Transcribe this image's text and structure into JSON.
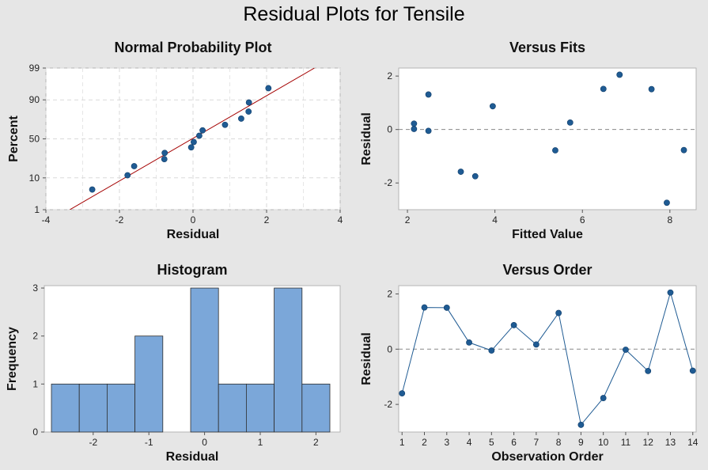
{
  "title": "Residual Plots for Tensile",
  "chart_data": [
    {
      "type": "scatter",
      "title": "Normal Probability Plot",
      "xlabel": "Residual",
      "ylabel": "Percent",
      "xlim": [
        -4,
        4
      ],
      "xticks": [
        -4,
        -2,
        0,
        2,
        4
      ],
      "yticks": [
        1,
        10,
        50,
        90,
        99
      ],
      "y_scale": "normal-probability",
      "grid": true,
      "fit_line": {
        "color": "#a40000",
        "points": [
          [
            -3.35,
            1
          ],
          [
            3.3,
            99
          ]
        ]
      },
      "residuals": [
        -2.74,
        -1.78,
        -1.6,
        -0.78,
        -0.77,
        -0.05,
        0.02,
        0.17,
        0.26,
        0.87,
        1.31,
        1.51,
        1.52,
        2.05
      ],
      "percent": [
        4.8,
        11.6,
        18.5,
        25.3,
        32.2,
        39,
        45.9,
        54.1,
        61,
        67.8,
        74.7,
        81.5,
        88.4,
        95.2
      ]
    },
    {
      "type": "scatter",
      "title": "Versus Fits",
      "xlabel": "Fitted Value",
      "ylabel": "Residual",
      "xlim": [
        1.8,
        8.6
      ],
      "ylim": [
        -3,
        2.3
      ],
      "xticks": [
        2,
        4,
        6,
        8
      ],
      "yticks": [
        -2,
        0,
        2
      ],
      "reference_line": 0,
      "x": [
        2.15,
        2.15,
        2.48,
        2.48,
        3.22,
        3.55,
        3.95,
        5.38,
        5.72,
        6.48,
        6.85,
        7.58,
        7.93,
        8.32
      ],
      "y": [
        0.22,
        0.02,
        1.31,
        -0.05,
        -1.58,
        -1.75,
        0.87,
        -0.78,
        0.26,
        1.52,
        2.05,
        1.51,
        -2.74,
        -0.77
      ]
    },
    {
      "type": "bar",
      "title": "Histogram",
      "xlabel": "Residual",
      "ylabel": "Frequency",
      "bin_width": 0.5,
      "bin_start": -2.75,
      "counts": [
        1,
        1,
        1,
        2,
        0,
        3,
        1,
        1,
        3,
        1
      ],
      "xlim": [
        -2.75,
        2.25
      ],
      "ylim": [
        0,
        3.05
      ],
      "xticks": [
        -2,
        -1,
        0,
        1,
        2
      ],
      "yticks": [
        0,
        1,
        2,
        3
      ],
      "bar_color": "#7ba7d9"
    },
    {
      "type": "line",
      "title": "Versus Order",
      "xlabel": "Observation Order",
      "ylabel": "Residual",
      "xlim": [
        0.85,
        14.15
      ],
      "ylim": [
        -3,
        2.3
      ],
      "xticks": [
        1,
        2,
        3,
        4,
        5,
        6,
        7,
        8,
        9,
        10,
        11,
        12,
        13,
        14
      ],
      "yticks": [
        -2,
        0,
        2
      ],
      "reference_line": 0,
      "x": [
        1,
        2,
        3,
        4,
        5,
        6,
        7,
        8,
        9,
        10,
        11,
        12,
        13,
        14
      ],
      "y": [
        -1.6,
        1.51,
        1.5,
        0.24,
        -0.05,
        0.87,
        0.17,
        1.31,
        -2.74,
        -1.77,
        -0.02,
        -0.79,
        2.05,
        -0.78
      ]
    }
  ]
}
